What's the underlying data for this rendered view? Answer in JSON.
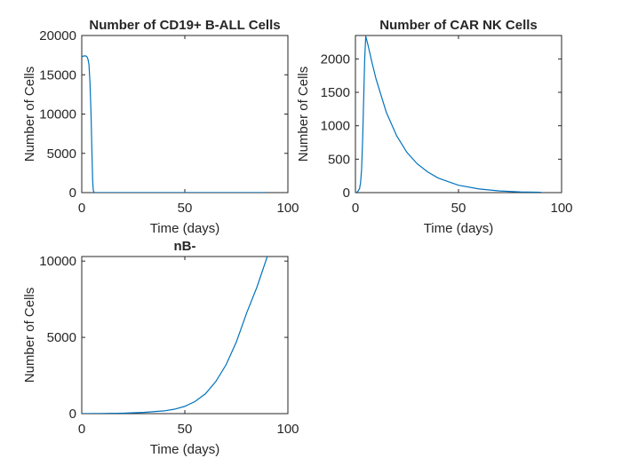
{
  "chart_data": [
    {
      "type": "line",
      "title": "Number of CD19+ B-ALL Cells",
      "xlabel": "Time (days)",
      "ylabel": "Number of Cells",
      "xlim": [
        0,
        100
      ],
      "ylim": [
        0,
        20000
      ],
      "xticks": [
        0,
        50,
        100
      ],
      "yticks": [
        0,
        5000,
        10000,
        15000,
        20000
      ],
      "xtick_labels": [
        "0",
        "50",
        "100"
      ],
      "ytick_labels": [
        "0",
        "5000",
        "10000",
        "15000",
        "20000"
      ],
      "grid": false,
      "color": "#0072BD",
      "series": [
        {
          "x": [
            0,
            1,
            2,
            2.5,
            3,
            3.5,
            4,
            4.5,
            5,
            5.3,
            5.6,
            6,
            10,
            20,
            40,
            60,
            80,
            90
          ],
          "y": [
            17300,
            17400,
            17400,
            17300,
            17000,
            16300,
            14000,
            10000,
            4500,
            1500,
            300,
            0,
            0,
            0,
            0,
            0,
            0,
            0
          ]
        }
      ]
    },
    {
      "type": "line",
      "title": "Number of CAR NK Cells",
      "xlabel": "Time (days)",
      "ylabel": "Number of Cells",
      "xlim": [
        0,
        100
      ],
      "ylim": [
        0,
        2350
      ],
      "xticks": [
        0,
        50,
        100
      ],
      "yticks": [
        0,
        500,
        1000,
        1500,
        2000
      ],
      "xtick_labels": [
        "0",
        "50",
        "100"
      ],
      "ytick_labels": [
        "0",
        "500",
        "1000",
        "1500",
        "2000"
      ],
      "grid": false,
      "color": "#0072BD",
      "series": [
        {
          "x": [
            0,
            1,
            2,
            2.5,
            3,
            3.5,
            4,
            4.5,
            5,
            6,
            8,
            10,
            15,
            20,
            25,
            30,
            35,
            40,
            50,
            60,
            70,
            80,
            90
          ],
          "y": [
            0,
            10,
            60,
            150,
            350,
            800,
            1400,
            2000,
            2340,
            2220,
            1950,
            1700,
            1200,
            850,
            600,
            430,
            310,
            220,
            110,
            55,
            25,
            10,
            5
          ]
        }
      ]
    },
    {
      "type": "line",
      "title": "nB-",
      "xlabel": "Time (days)",
      "ylabel": "Number of Cells",
      "xlim": [
        0,
        100
      ],
      "ylim": [
        0,
        10300
      ],
      "xticks": [
        0,
        50,
        100
      ],
      "yticks": [
        0,
        5000,
        10000
      ],
      "xtick_labels": [
        "0",
        "50",
        "100"
      ],
      "ytick_labels": [
        "0",
        "5000",
        "10000"
      ],
      "grid": false,
      "color": "#0072BD",
      "series": [
        {
          "x": [
            0,
            10,
            20,
            30,
            40,
            45,
            50,
            55,
            60,
            65,
            70,
            75,
            80,
            85,
            90
          ],
          "y": [
            0,
            8,
            30,
            80,
            180,
            290,
            480,
            800,
            1300,
            2100,
            3200,
            4700,
            6600,
            8300,
            10300
          ]
        }
      ]
    }
  ]
}
